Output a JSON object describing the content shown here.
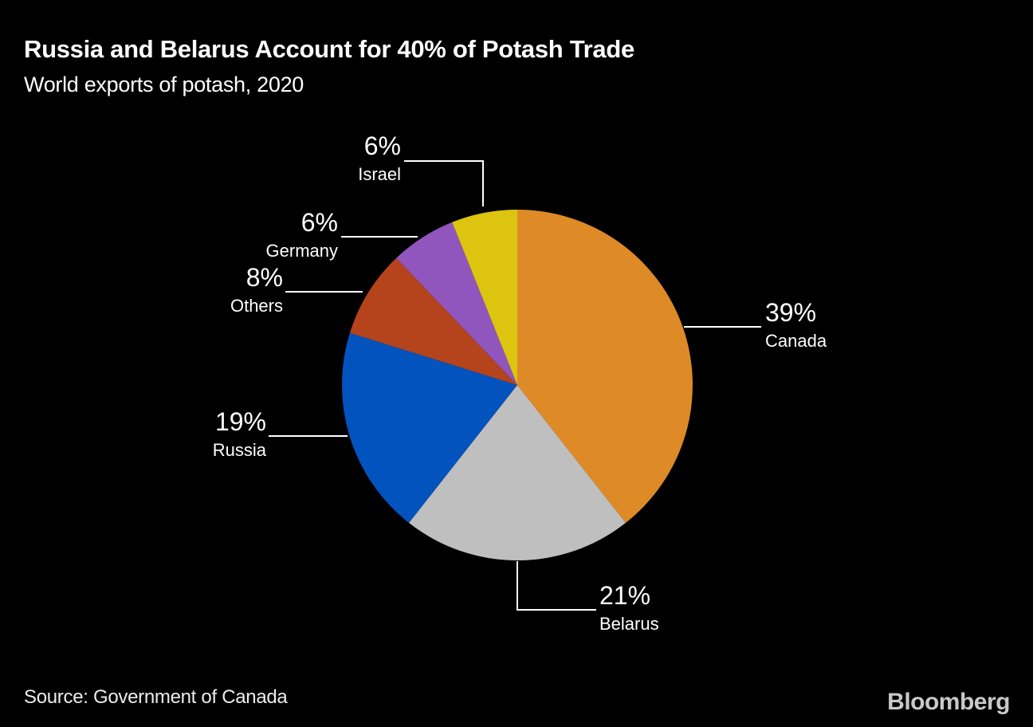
{
  "header": {
    "title": "Russia and Belarus Account for 40% of Potash Trade",
    "subtitle": "World exports of potash, 2020"
  },
  "footer": {
    "source": "Source: Government of Canada",
    "brand": "Bloomberg"
  },
  "colors": {
    "background": "#000000",
    "text": "#ffffff",
    "leader_line": "#ffffff",
    "brand_logo": "#c9c9c9"
  },
  "chart_data": {
    "type": "pie",
    "title": "Russia and Belarus Account for 40% of Potash Trade",
    "subtitle": "World exports of potash, 2020",
    "source": "Source: Government of Canada",
    "start_angle_deg": 0,
    "direction": "clockwise",
    "legend_position": "callout-labels",
    "unit": "%",
    "slices": [
      {
        "label": "Canada",
        "value": 39,
        "pct_label": "39%",
        "color": "#DE8A27"
      },
      {
        "label": "Belarus",
        "value": 21,
        "pct_label": "21%",
        "color": "#BFBFBF"
      },
      {
        "label": "Russia",
        "value": 19,
        "pct_label": "19%",
        "color": "#0353BE"
      },
      {
        "label": "Others",
        "value": 8,
        "pct_label": "8%",
        "color": "#B5431C"
      },
      {
        "label": "Germany",
        "value": 6,
        "pct_label": "6%",
        "color": "#9155BE"
      },
      {
        "label": "Israel",
        "value": 6,
        "pct_label": "6%",
        "color": "#DCC40F"
      }
    ]
  }
}
